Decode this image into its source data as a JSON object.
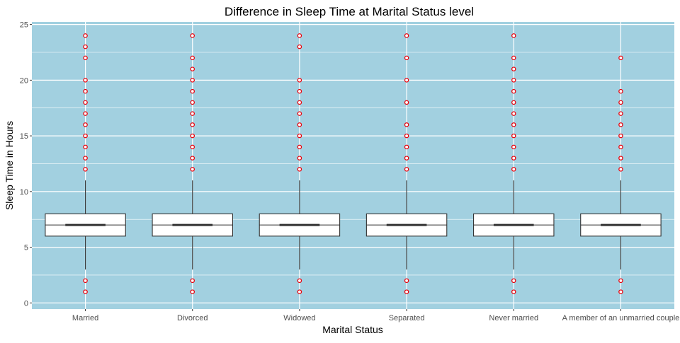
{
  "chart_data": {
    "type": "boxplot",
    "title": "Difference in Sleep Time at Marital Status level",
    "xlabel": "Marital Status",
    "ylabel": "Sleep Time in Hours",
    "ylim": [
      0,
      25
    ],
    "yticks": [
      0,
      5,
      10,
      15,
      20,
      25
    ],
    "grid": true,
    "legend": "none",
    "categories": [
      "Married",
      "Divorced",
      "Widowed",
      "Separated",
      "Never married",
      "A member of an unmarried couple"
    ],
    "boxes": [
      {
        "category": "Married",
        "whisker_low": 3,
        "q1": 6,
        "median": 7,
        "q3": 8,
        "whisker_high": 11,
        "outliers": [
          1,
          2,
          12,
          13,
          14,
          15,
          16,
          17,
          18,
          19,
          20,
          22,
          23,
          24
        ]
      },
      {
        "category": "Divorced",
        "whisker_low": 3,
        "q1": 6,
        "median": 7,
        "q3": 8,
        "whisker_high": 11,
        "outliers": [
          1,
          2,
          12,
          13,
          14,
          15,
          16,
          17,
          18,
          19,
          20,
          21,
          22,
          24
        ]
      },
      {
        "category": "Widowed",
        "whisker_low": 3,
        "q1": 6,
        "median": 7,
        "q3": 8,
        "whisker_high": 11,
        "outliers": [
          1,
          2,
          12,
          13,
          14,
          15,
          16,
          17,
          18,
          19,
          20,
          23,
          24
        ]
      },
      {
        "category": "Separated",
        "whisker_low": 3,
        "q1": 6,
        "median": 7,
        "q3": 8,
        "whisker_high": 11,
        "outliers": [
          1,
          2,
          12,
          13,
          14,
          15,
          16,
          18,
          20,
          22,
          24
        ]
      },
      {
        "category": "Never married",
        "whisker_low": 3,
        "q1": 6,
        "median": 7,
        "q3": 8,
        "whisker_high": 11,
        "outliers": [
          1,
          2,
          12,
          13,
          14,
          15,
          16,
          17,
          18,
          19,
          20,
          21,
          22,
          24
        ]
      },
      {
        "category": "A member of an unmarried couple",
        "whisker_low": 3,
        "q1": 6,
        "median": 7,
        "q3": 8,
        "whisker_high": 11,
        "outliers": [
          1,
          2,
          12,
          13,
          14,
          15,
          16,
          17,
          18,
          19,
          22
        ]
      }
    ],
    "colors": {
      "panel_background": "#a2d0e0",
      "grid": "#ffffff",
      "box_fill": "#ffffff",
      "box_line": "#333333",
      "outlier": "#e8000b",
      "text": "#000000",
      "tick_text": "#4d4d4d"
    }
  }
}
